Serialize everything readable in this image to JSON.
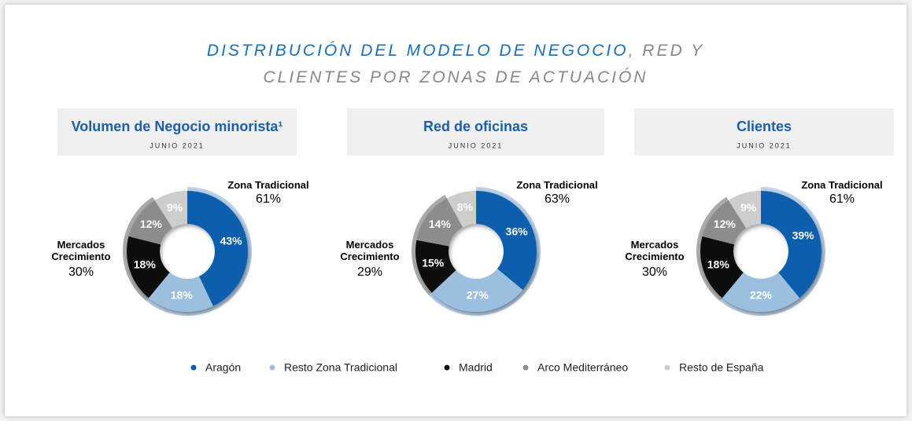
{
  "title": {
    "main": "DISTRIBUCIÓN DEL MODELO DE NEGOCIO",
    "rest": ", RED Y CLIENTES POR ZONAS DE ACTUACIÓN"
  },
  "legend": {
    "categories": [
      "Aragón",
      "Resto Zona Tradicional",
      "Madrid",
      "Arco Mediterráneo",
      "Resto de España"
    ],
    "colors": [
      "#0b5ead",
      "#9dbfdf",
      "#111111",
      "#8c8c8c",
      "#cdcdcd"
    ]
  },
  "chart_data": [
    {
      "type": "pie",
      "title": "Volumen de Negocio minorista¹",
      "subtitle": "JUNIO 2021",
      "values": [
        43,
        18,
        18,
        12,
        9
      ],
      "value_labels": [
        "43%",
        "18%",
        "18%",
        "12%",
        "9%"
      ],
      "groups": [
        {
          "name": "Zona Tradicional",
          "value": 61,
          "value_label": "61%",
          "color": "#b9d0e8"
        },
        {
          "name": "Mercados Crecimiento",
          "value": 30,
          "value_label": "30%",
          "color": "#a9a9a9"
        }
      ]
    },
    {
      "type": "pie",
      "title": "Red de oficinas",
      "subtitle": "JUNIO 2021",
      "values": [
        36,
        27,
        15,
        14,
        8
      ],
      "value_labels": [
        "36%",
        "27%",
        "15%",
        "14%",
        "8%"
      ],
      "groups": [
        {
          "name": "Zona Tradicional",
          "value": 63,
          "value_label": "63%",
          "color": "#b9d0e8"
        },
        {
          "name": "Mercados Crecimiento",
          "value": 29,
          "value_label": "29%",
          "color": "#a9a9a9"
        }
      ]
    },
    {
      "type": "pie",
      "title": "Clientes",
      "subtitle": "JUNIO 2021",
      "values": [
        39,
        22,
        18,
        12,
        9
      ],
      "value_labels": [
        "39%",
        "22%",
        "18%",
        "12%",
        "9%"
      ],
      "groups": [
        {
          "name": "Zona Tradicional",
          "value": 61,
          "value_label": "61%",
          "color": "#b9d0e8"
        },
        {
          "name": "Mercados Crecimiento",
          "value": 30,
          "value_label": "30%",
          "color": "#a9a9a9"
        }
      ]
    }
  ]
}
